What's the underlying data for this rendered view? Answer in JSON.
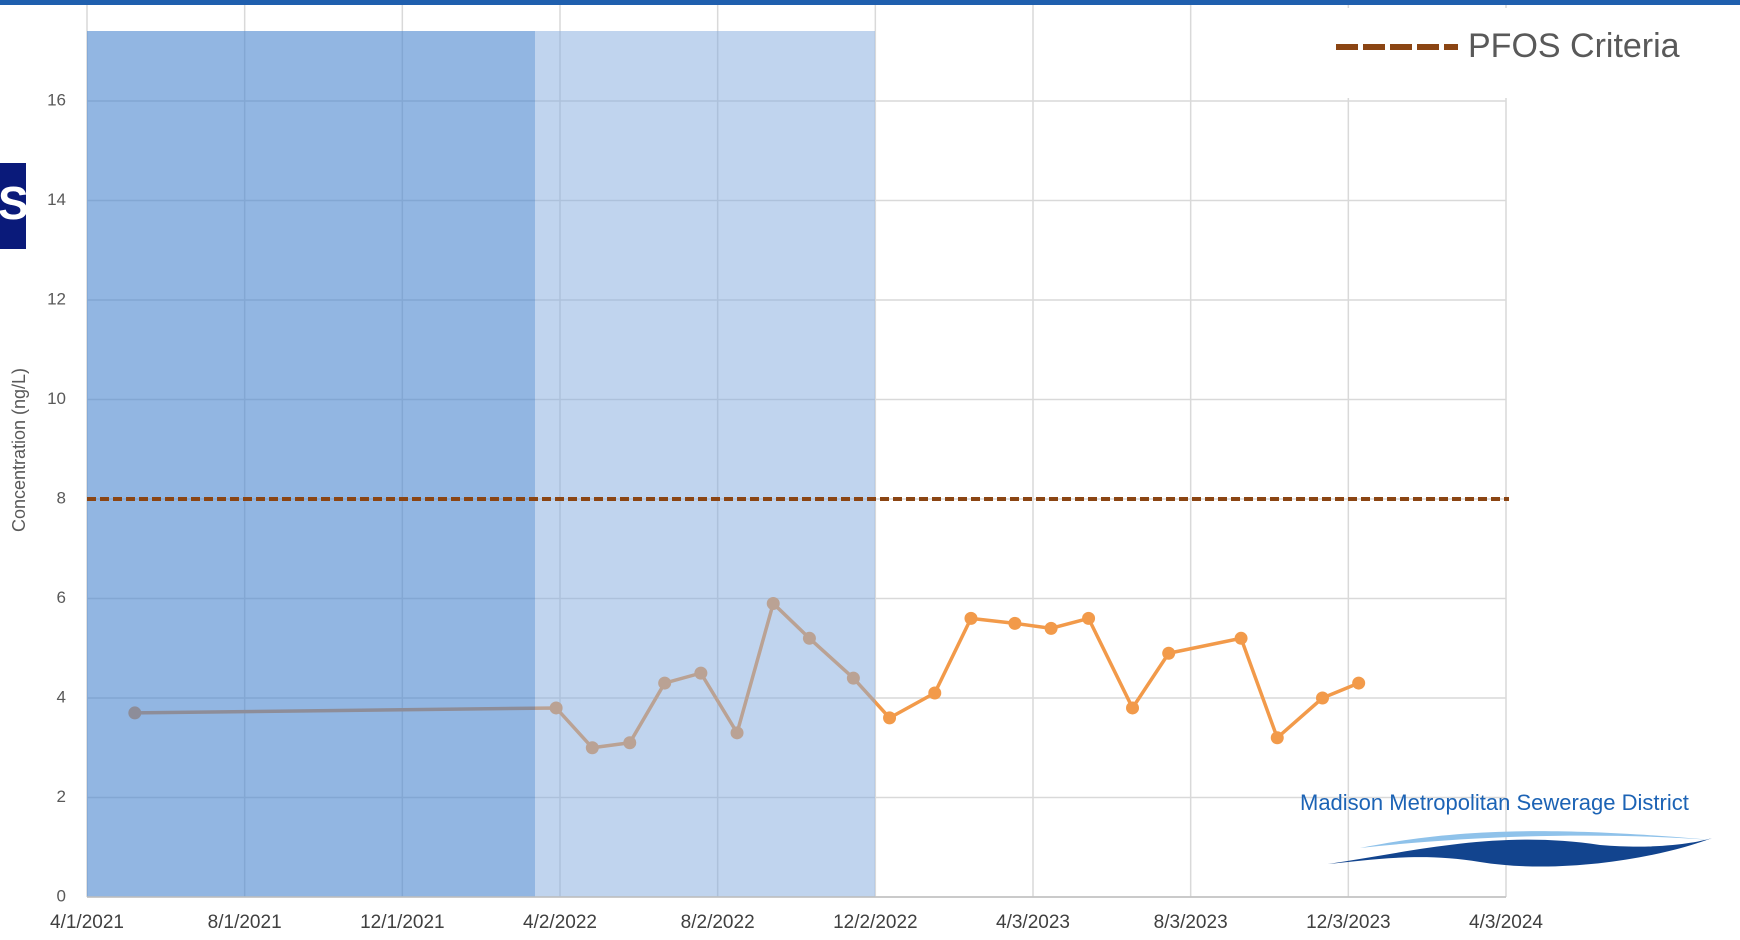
{
  "chart_data": {
    "type": "line",
    "badge": "S",
    "y_label": "Concentration (ng/L)",
    "logo_text": "Madison Metropolitan Sewerage District",
    "x": [
      "2021-05-08",
      "2022-03-30",
      "2022-04-27",
      "2022-05-26",
      "2022-06-22",
      "2022-07-20",
      "2022-08-17",
      "2022-09-14",
      "2022-10-12",
      "2022-11-15",
      "2022-12-13",
      "2023-01-17",
      "2023-02-14",
      "2023-03-20",
      "2023-04-17",
      "2023-05-16",
      "2023-06-19",
      "2023-07-17",
      "2023-09-11",
      "2023-10-09",
      "2023-11-13",
      "2023-12-11"
    ],
    "series": [
      {
        "color": "#f29a4a",
        "values": [
          3.7,
          3.8,
          3.0,
          3.1,
          4.3,
          4.5,
          3.3,
          5.9,
          5.2,
          4.4,
          3.6,
          4.1,
          5.6,
          5.5,
          5.4,
          5.6,
          3.8,
          4.9,
          5.2,
          3.2,
          4.0,
          4.3
        ]
      }
    ],
    "criteria": {
      "name": "PFOS Criteria",
      "value": 8,
      "color": "#8b4513"
    },
    "xlim": [
      "2021-04-01",
      "2024-04-03"
    ],
    "xticks": [
      {
        "value": "2021-04-01",
        "label": "4/1/2021"
      },
      {
        "value": "2021-08-01",
        "label": "8/1/2021"
      },
      {
        "value": "2021-12-01",
        "label": "12/1/2021"
      },
      {
        "value": "2022-04-02",
        "label": "4/2/2022"
      },
      {
        "value": "2022-08-02",
        "label": "8/2/2022"
      },
      {
        "value": "2022-12-02",
        "label": "12/2/2022"
      },
      {
        "value": "2023-04-03",
        "label": "4/3/2023"
      },
      {
        "value": "2023-08-03",
        "label": "8/3/2023"
      },
      {
        "value": "2023-12-03",
        "label": "12/3/2023"
      },
      {
        "value": "2024-04-03",
        "label": "4/3/2024"
      }
    ],
    "ylim": [
      0,
      18
    ],
    "yticks": [
      0,
      2,
      4,
      6,
      8,
      10,
      12,
      14,
      16
    ],
    "grid": true
  }
}
